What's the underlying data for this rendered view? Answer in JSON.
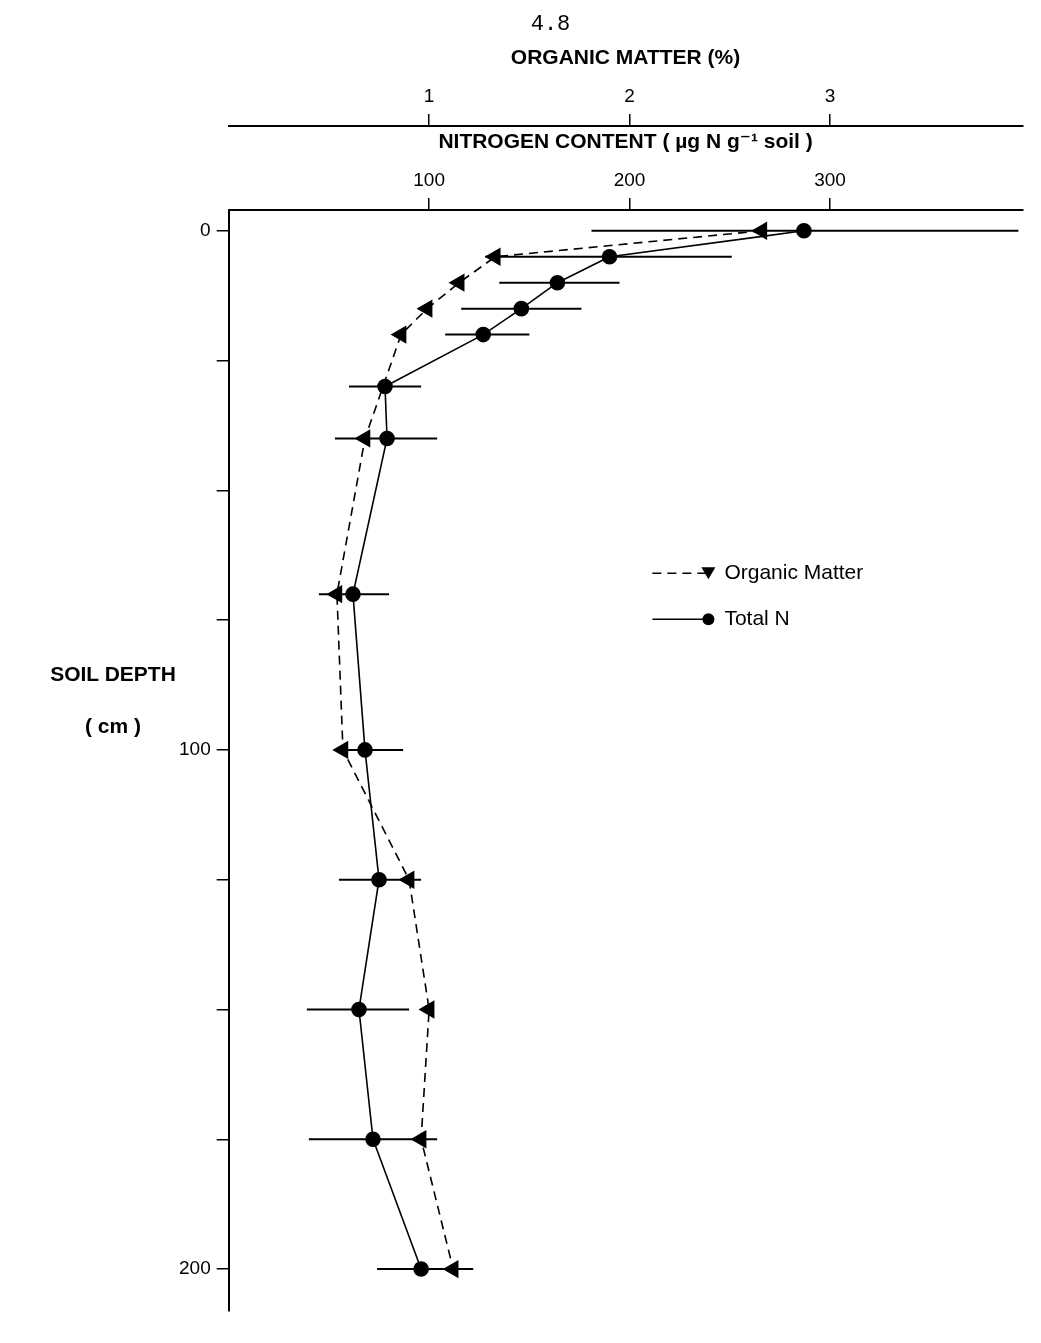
{
  "chart_data": {
    "type": "line",
    "orientation": "horizontal",
    "annotations": [
      "4.8"
    ],
    "xlabel": "NITROGEN CONTENT ( µg N g⁻¹ soil )",
    "x2label": "ORGANIC MATTER (%)",
    "ylabel": "SOIL DEPTH\n( cm )",
    "x": [
      0,
      5,
      10,
      15,
      20,
      30,
      40,
      70,
      100,
      125,
      150,
      175,
      200
    ],
    "xlim": [
      0,
      396
    ],
    "xticks": [
      100,
      200,
      300
    ],
    "x2lim": [
      0,
      3.96
    ],
    "x2ticks": [
      1,
      2,
      3
    ],
    "ylim": [
      208,
      -4
    ],
    "yticks": [
      0,
      {
        "value": 25,
        "label": null
      },
      {
        "value": 50,
        "label": null
      },
      {
        "value": 75,
        "label": null
      },
      100,
      {
        "value": 125,
        "label": null
      },
      {
        "value": 150,
        "label": null
      },
      {
        "value": 175,
        "label": null
      },
      200
    ],
    "grid": false,
    "legend": "right",
    "series": [
      {
        "name": "Organic Matter",
        "color": "#000000",
        "axis": "x2",
        "marker": "triangle",
        "line_style": "dashed",
        "values": [
          2.66,
          1.33,
          1.15,
          0.99,
          0.86,
          null,
          0.68,
          0.54,
          0.57,
          0.9,
          1.0,
          0.96,
          1.12
        ]
      },
      {
        "name": "Total N",
        "color": "#000000",
        "marker": "circle",
        "line_style": "solid",
        "values": [
          287,
          190,
          164,
          146,
          127,
          78,
          79,
          62,
          68,
          75,
          65,
          72,
          96
        ],
        "errors": [
          [
            181,
            394
          ],
          [
            128,
            251
          ],
          [
            135,
            195
          ],
          [
            116,
            176
          ],
          [
            108,
            150
          ],
          [
            60,
            96
          ],
          [
            53,
            104
          ],
          [
            45,
            80
          ],
          [
            53,
            87
          ],
          [
            55,
            96
          ],
          [
            39,
            90
          ],
          [
            40,
            104
          ],
          [
            74,
            122
          ]
        ]
      }
    ]
  }
}
